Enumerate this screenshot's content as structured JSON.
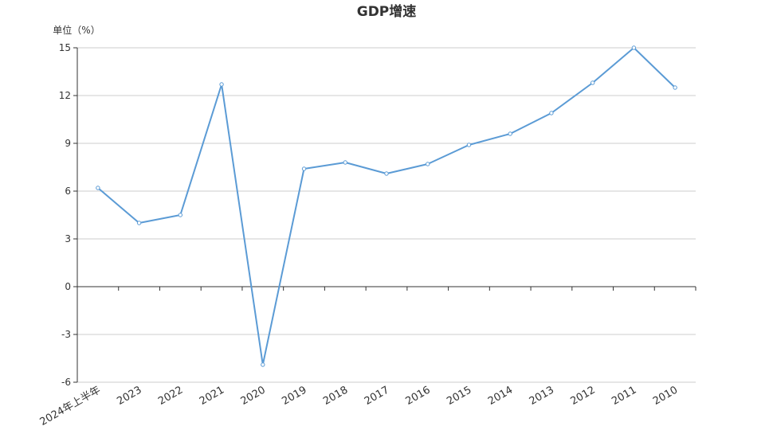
{
  "chart_data": {
    "type": "line",
    "title": "GDP增速",
    "ylabel": "单位（%）",
    "xlabel": "",
    "categories": [
      "2024年上半年",
      "2023",
      "2022",
      "2021",
      "2020",
      "2019",
      "2018",
      "2017",
      "2016",
      "2015",
      "2014",
      "2013",
      "2012",
      "2011",
      "2010"
    ],
    "series": [
      {
        "values": [
          6.2,
          4.0,
          4.5,
          12.7,
          -4.9,
          7.4,
          7.8,
          7.1,
          7.7,
          8.9,
          9.6,
          10.9,
          12.8,
          15.0,
          12.5
        ]
      }
    ],
    "ylim": [
      -6,
      15
    ],
    "yticks": [
      15,
      12,
      9,
      6,
      3,
      0,
      -3,
      -6
    ],
    "grid": true,
    "legend": "none",
    "colors": {
      "line": "#5b9bd5",
      "grid": "#cccccc",
      "axis": "#333333"
    }
  }
}
